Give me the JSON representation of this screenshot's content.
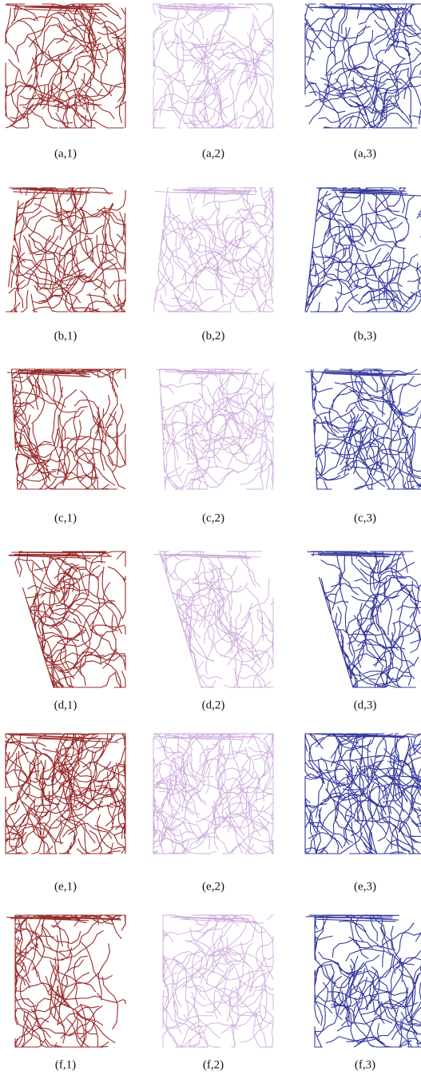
{
  "panels": [
    [
      "(a,1)",
      "(a,2)",
      "(a,3)"
    ],
    [
      "(b,1)",
      "(b,2)",
      "(b,3)"
    ],
    [
      "(c,1)",
      "(c,2)",
      "(c,3)"
    ],
    [
      "(d,1)",
      "(d,2)",
      "(d,3)"
    ],
    [
      "(e,1)",
      "(e,2)",
      "(e,3)"
    ],
    [
      "(f,1)",
      "(f,2)",
      "(f,3)"
    ]
  ]
}
